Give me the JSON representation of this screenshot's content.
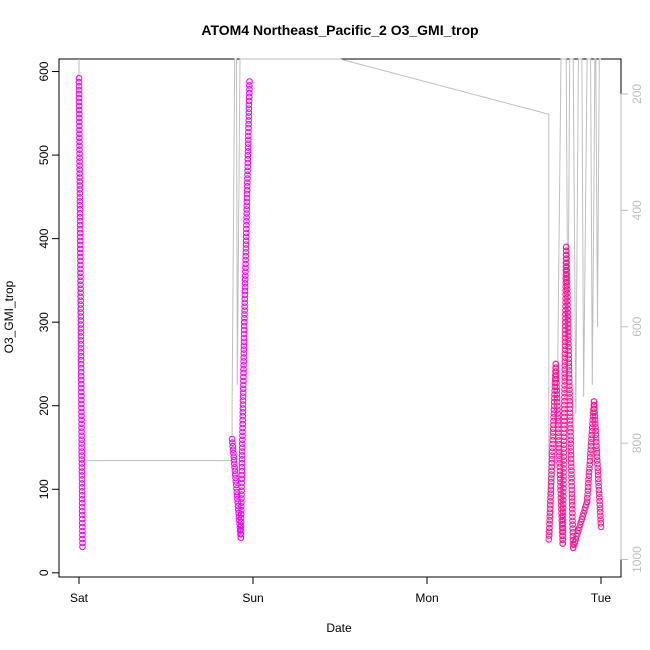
{
  "chart_data": {
    "type": "scatter",
    "title": "ATOM4 Northeast_Pacific_2 O3_GMI_trop",
    "xlabel": "Date",
    "ylabel": "O3_GMI_trop",
    "x_range": [
      0,
      3
    ],
    "x_ticks": [
      {
        "value": 0,
        "label": "Sat"
      },
      {
        "value": 1,
        "label": "Sun"
      },
      {
        "value": 2,
        "label": "Mon"
      },
      {
        "value": 3,
        "label": "Tue"
      }
    ],
    "ylim": [
      -5,
      615
    ],
    "y_ticks": [
      0,
      100,
      200,
      300,
      400,
      500,
      600
    ],
    "right_axis": {
      "ylim": [
        1030,
        140
      ],
      "ticks": [
        200,
        400,
        600,
        800,
        1000
      ],
      "color": "#bebebe"
    },
    "grid": false,
    "series": [
      {
        "color": "#ee00ee",
        "marker": "open-circle",
        "segments": [
          {
            "x0": 0.0,
            "x1": 0.02,
            "v0": 592,
            "v1": 31
          },
          {
            "x0": 0.88,
            "x1": 0.93,
            "v0": 160,
            "v1": 42
          },
          {
            "x0": 0.93,
            "x1": 0.95,
            "v0": 42,
            "v1": 300
          },
          {
            "x0": 0.95,
            "x1": 0.98,
            "v0": 300,
            "v1": 588
          }
        ]
      },
      {
        "color": "#ff1493",
        "marker": "open-circle",
        "segments": [
          {
            "x0": 2.7,
            "x1": 2.74,
            "v0": 40,
            "v1": 250
          },
          {
            "x0": 2.74,
            "x1": 2.78,
            "v0": 250,
            "v1": 35
          },
          {
            "x0": 2.78,
            "x1": 2.8,
            "v0": 35,
            "v1": 390
          },
          {
            "x0": 2.8,
            "x1": 2.84,
            "v0": 390,
            "v1": 30
          },
          {
            "x0": 2.84,
            "x1": 2.92,
            "v0": 30,
            "v1": 85
          },
          {
            "x0": 2.92,
            "x1": 2.96,
            "v0": 85,
            "v1": 205
          },
          {
            "x0": 2.96,
            "x1": 3.0,
            "v0": 205,
            "v1": 55
          }
        ]
      }
    ],
    "pressure_line": {
      "color": "#bebebe",
      "points": [
        [
          0.0,
          140
        ],
        [
          0.0,
          830
        ],
        [
          0.45,
          830
        ],
        [
          0.88,
          830
        ],
        [
          0.88,
          730
        ],
        [
          0.895,
          140
        ],
        [
          0.905,
          140
        ],
        [
          0.91,
          700
        ],
        [
          0.925,
          140
        ],
        [
          0.93,
          140
        ],
        [
          1.0,
          140
        ],
        [
          1.5,
          140
        ],
        [
          2.7,
          235
        ],
        [
          2.7,
          960
        ],
        [
          2.72,
          960
        ],
        [
          2.75,
          700
        ],
        [
          2.77,
          140
        ],
        [
          2.8,
          140
        ],
        [
          2.81,
          650
        ],
        [
          2.82,
          140
        ],
        [
          2.84,
          140
        ],
        [
          2.855,
          750
        ],
        [
          2.87,
          140
        ],
        [
          2.89,
          140
        ],
        [
          2.9,
          720
        ],
        [
          2.92,
          140
        ],
        [
          2.94,
          140
        ],
        [
          2.95,
          700
        ],
        [
          2.965,
          140
        ],
        [
          2.97,
          140
        ],
        [
          2.98,
          600
        ],
        [
          2.99,
          140
        ],
        [
          3.0,
          140
        ]
      ]
    }
  }
}
